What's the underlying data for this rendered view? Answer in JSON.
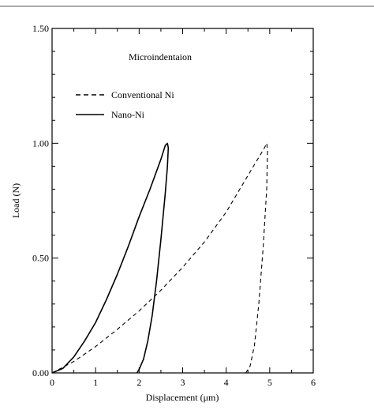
{
  "chart_data": {
    "type": "line",
    "title": "",
    "annotation": "Microindentaion",
    "xlabel": "Displacement (μm)",
    "ylabel": "Load (N)",
    "xlim": [
      0,
      6
    ],
    "ylim": [
      0,
      1.5
    ],
    "x_ticks": [
      0,
      1,
      2,
      3,
      4,
      5,
      6
    ],
    "y_ticks": [
      0.0,
      0.5,
      1.0,
      1.5
    ],
    "x_tick_labels": [
      "0",
      "1",
      "2",
      "3",
      "4",
      "5",
      "6"
    ],
    "y_tick_labels": [
      "0.00",
      "0.50",
      "1.00",
      "1.50"
    ],
    "grid": false,
    "legend_position": "top-left",
    "series": [
      {
        "name": "Conventional Ni",
        "style": "dashed",
        "color": "#000000",
        "x": [
          0.0,
          0.5,
          1.0,
          1.5,
          2.0,
          2.5,
          3.0,
          3.5,
          4.0,
          4.5,
          4.88,
          4.93,
          4.95,
          4.93,
          4.85,
          4.75,
          4.65,
          4.55,
          4.45
        ],
        "y": [
          0.0,
          0.05,
          0.115,
          0.19,
          0.27,
          0.36,
          0.46,
          0.57,
          0.7,
          0.86,
          0.98,
          1.0,
          0.97,
          0.8,
          0.55,
          0.3,
          0.12,
          0.03,
          0.0
        ]
      },
      {
        "name": "Nano-Ni",
        "style": "solid",
        "color": "#000000",
        "x": [
          0.0,
          0.25,
          0.5,
          0.75,
          1.0,
          1.25,
          1.5,
          1.75,
          2.0,
          2.25,
          2.5,
          2.6,
          2.65,
          2.67,
          2.65,
          2.6,
          2.5,
          2.4,
          2.3,
          2.2,
          2.1,
          2.0,
          1.95
        ],
        "y": [
          0.0,
          0.02,
          0.07,
          0.14,
          0.22,
          0.32,
          0.43,
          0.55,
          0.68,
          0.8,
          0.93,
          0.99,
          1.0,
          0.98,
          0.9,
          0.78,
          0.58,
          0.4,
          0.25,
          0.14,
          0.06,
          0.015,
          0.0
        ]
      }
    ]
  }
}
